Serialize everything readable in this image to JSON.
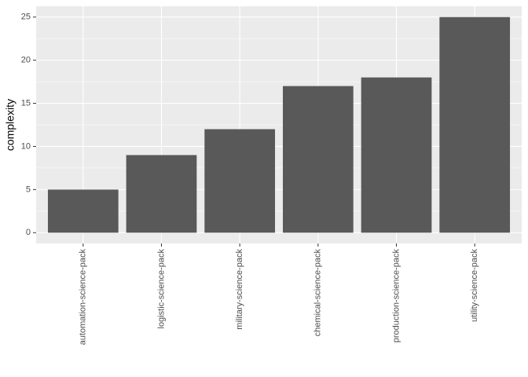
{
  "chart_data": {
    "type": "bar",
    "y_label": "complexity",
    "categories": [
      "automation-science-pack",
      "logistic-science-pack",
      "military-science-pack",
      "chemical-science-pack",
      "production-science-pack",
      "utility-science-pack"
    ],
    "values": [
      5,
      9,
      12,
      17,
      18,
      25
    ],
    "color": "#595959",
    "ylim": [
      -1.25,
      26.25
    ],
    "yticks": [
      0,
      5,
      10,
      15,
      20,
      25
    ],
    "grid": true
  }
}
